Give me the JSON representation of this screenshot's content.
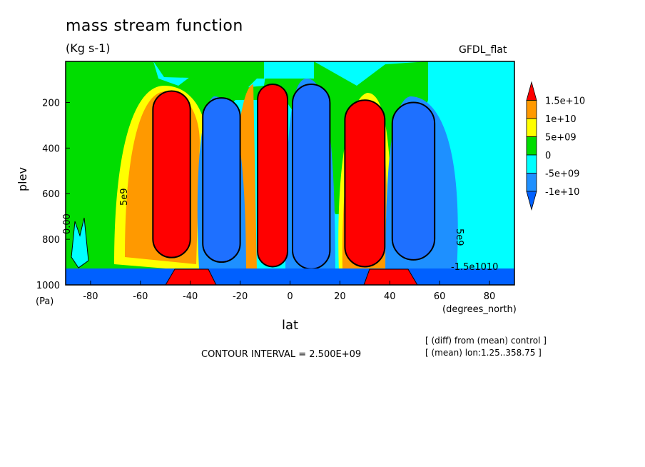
{
  "chart_data": {
    "type": "heatmap",
    "title": "mass stream function",
    "units": "(Kg s-1)",
    "model": "GFDL_flat",
    "xlabel": "lat",
    "ylabel": "plev",
    "x_units": "(degrees_north)",
    "y_units": "(Pa)",
    "xlim": [
      -90,
      90
    ],
    "ylim": [
      1000,
      20
    ],
    "xticks": [
      -80,
      -60,
      -40,
      -20,
      0,
      20,
      40,
      60,
      80
    ],
    "yticks": [
      200,
      400,
      600,
      800,
      1000
    ],
    "contour_interval": "CONTOUR INTERVAL = 2.500E+09",
    "notes": [
      "[ (diff) from (mean) control ]",
      "[ (mean) lon:1.25..358.75 ]"
    ],
    "colorbar": {
      "labels": [
        "1.5e+10",
        "1e+10",
        "5e+09",
        "0",
        "-5e+09",
        "-1e+10"
      ],
      "colors": [
        "#ff0000",
        "#ff9900",
        "#ffff00",
        "#00dd00",
        "#00ffff",
        "#1e90ff",
        "#0060ff"
      ]
    },
    "cells": [
      {
        "lat0": -55,
        "lat1": -40,
        "p0": 150,
        "p1": 880,
        "value": 15000000000.0
      },
      {
        "lat0": -35,
        "lat1": -20,
        "p0": 180,
        "p1": 900,
        "value": -10000000000.0
      },
      {
        "lat0": -13,
        "lat1": -1,
        "p0": 120,
        "p1": 920,
        "value": 15000000000.0
      },
      {
        "lat0": 1,
        "lat1": 16,
        "p0": 120,
        "p1": 930,
        "value": -10000000000.0
      },
      {
        "lat0": 22,
        "lat1": 38,
        "p0": 190,
        "p1": 920,
        "value": 15000000000.0
      },
      {
        "lat0": 41,
        "lat1": 58,
        "p0": 200,
        "p1": 890,
        "value": -10000000000.0
      }
    ],
    "contour_labels": [
      "5e9",
      "0.00",
      "5e9",
      "-1.5e1010"
    ]
  }
}
